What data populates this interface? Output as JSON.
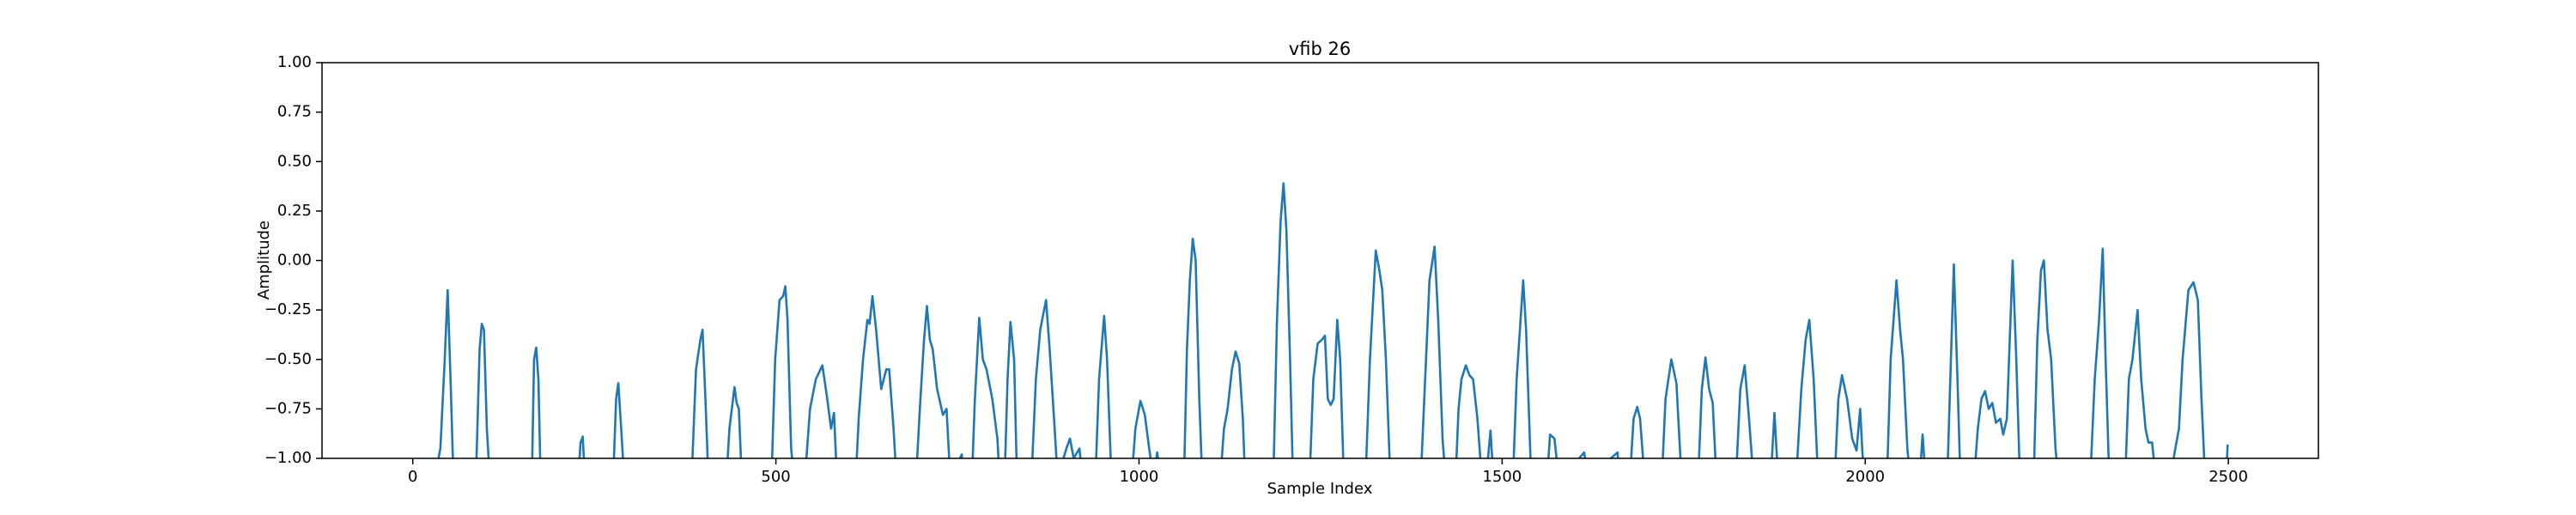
{
  "chart_data": {
    "type": "line",
    "title": "vfib 26",
    "xlabel": "Sample Index",
    "ylabel": "Amplitude",
    "color": "#1f77b4",
    "xlim": [
      -125,
      2624
    ],
    "ylim": [
      -1,
      1
    ],
    "xticks": [
      0,
      500,
      1000,
      1500,
      2000,
      2500
    ],
    "yticks": [
      {
        "value": -1,
        "label": "−1.00"
      },
      {
        "value": -0.75,
        "label": "−0.75"
      },
      {
        "value": -0.5,
        "label": "−0.50"
      },
      {
        "value": -0.25,
        "label": "−0.25"
      },
      {
        "value": 0,
        "label": "0.00"
      },
      {
        "value": 0.25,
        "label": "0.25"
      },
      {
        "value": 0.5,
        "label": "0.50"
      },
      {
        "value": 0.75,
        "label": "0.75"
      },
      {
        "value": 1,
        "label": "1.00"
      }
    ],
    "x": [
      0,
      30,
      38,
      44,
      48,
      52,
      56,
      87,
      92,
      95,
      98,
      102,
      106,
      164,
      167,
      170,
      173,
      176,
      228,
      231,
      234,
      237,
      276,
      280,
      283,
      287,
      291,
      384,
      390,
      396,
      399,
      403,
      407,
      432,
      436,
      443,
      446,
      449,
      453,
      494,
      499,
      505,
      510,
      513,
      516,
      521,
      525,
      540,
      547,
      555,
      564,
      570,
      576,
      580,
      584,
      610,
      614,
      620,
      626,
      629,
      633,
      638,
      645,
      652,
      656,
      662,
      666,
      693,
      699,
      704,
      708,
      712,
      716,
      722,
      730,
      735,
      740,
      756,
      758,
      770,
      774,
      780,
      785,
      790,
      798,
      805,
      808,
      815,
      819,
      823,
      828,
      832,
      852,
      858,
      864,
      872,
      877,
      883,
      888,
      900,
      905,
      910,
      918,
      922,
      940,
      945,
      952,
      956,
      962,
      990,
      995,
      1002,
      1008,
      1014,
      1020,
      1025,
      1030,
      1062,
      1066,
      1070,
      1074,
      1078,
      1083,
      1087,
      1112,
      1117,
      1122,
      1128,
      1133,
      1138,
      1143,
      1146,
      1185,
      1190,
      1195,
      1199,
      1203,
      1208,
      1212,
      1235,
      1240,
      1246,
      1252,
      1256,
      1260,
      1264,
      1268,
      1273,
      1277,
      1282,
      1312,
      1318,
      1326,
      1331,
      1335,
      1340,
      1346,
      1388,
      1394,
      1400,
      1407,
      1412,
      1418,
      1422,
      1436,
      1440,
      1444,
      1450,
      1455,
      1460,
      1466,
      1472,
      1478,
      1484,
      1488,
      1515,
      1520,
      1529,
      1533,
      1540,
      1562,
      1566,
      1572,
      1578,
      1606,
      1613,
      1618,
      1659,
      1661,
      1676,
      1681,
      1686,
      1690,
      1696,
      1720,
      1725,
      1733,
      1740,
      1747,
      1770,
      1775,
      1780,
      1785,
      1790,
      1795,
      1822,
      1828,
      1834,
      1840,
      1846,
      1870,
      1875,
      1880,
      1905,
      1912,
      1918,
      1923,
      1929,
      1935,
      1958,
      1963,
      1968,
      1975,
      1982,
      1988,
      1993,
      1998,
      2030,
      2035,
      2043,
      2048,
      2052,
      2058,
      2062,
      2075,
      2079,
      2083,
      2113,
      2118,
      2122,
      2127,
      2131,
      2150,
      2155,
      2160,
      2165,
      2170,
      2175,
      2180,
      2186,
      2190,
      2195,
      2200,
      2203,
      2208,
      2213,
      2232,
      2237,
      2242,
      2246,
      2251,
      2256,
      2262,
      2266,
      2310,
      2316,
      2322,
      2327,
      2331,
      2336,
      2358,
      2363,
      2368,
      2375,
      2380,
      2386,
      2390,
      2395,
      2400,
      2420,
      2427,
      2432,
      2437,
      2445,
      2452,
      2458,
      2463,
      2468,
      2497,
      2499
    ],
    "values": [
      -1.1,
      -1.1,
      -0.95,
      -0.5,
      -0.15,
      -0.6,
      -1.1,
      -1.1,
      -0.45,
      -0.32,
      -0.35,
      -0.85,
      -1.1,
      -1.1,
      -0.5,
      -0.44,
      -0.6,
      -1.1,
      -1.1,
      -0.92,
      -0.89,
      -1.1,
      -1.1,
      -0.7,
      -0.62,
      -0.85,
      -1.1,
      -1.1,
      -0.55,
      -0.4,
      -0.35,
      -0.7,
      -1.1,
      -1.1,
      -0.85,
      -0.64,
      -0.72,
      -0.75,
      -1.1,
      -1.1,
      -0.5,
      -0.2,
      -0.18,
      -0.13,
      -0.3,
      -0.95,
      -1.1,
      -1.1,
      -0.75,
      -0.6,
      -0.53,
      -0.68,
      -0.85,
      -0.77,
      -1.1,
      -1.1,
      -0.8,
      -0.5,
      -0.3,
      -0.32,
      -0.18,
      -0.35,
      -0.65,
      -0.55,
      -0.55,
      -0.85,
      -1.1,
      -1.1,
      -0.7,
      -0.4,
      -0.23,
      -0.4,
      -0.45,
      -0.65,
      -0.78,
      -0.75,
      -1.1,
      -0.98,
      -1.1,
      -1.1,
      -0.7,
      -0.29,
      -0.5,
      -0.55,
      -0.7,
      -0.9,
      -1.1,
      -1.1,
      -0.6,
      -0.31,
      -0.5,
      -1.1,
      -1.1,
      -0.6,
      -0.35,
      -0.2,
      -0.45,
      -0.8,
      -1.1,
      -0.95,
      -0.9,
      -1.0,
      -0.95,
      -1.1,
      -1.1,
      -0.6,
      -0.28,
      -0.5,
      -1.1,
      -1.1,
      -0.85,
      -0.71,
      -0.78,
      -0.95,
      -1.1,
      -0.97,
      -1.1,
      -1.1,
      -0.45,
      -0.1,
      0.11,
      0.0,
      -0.7,
      -1.1,
      -1.1,
      -0.85,
      -0.75,
      -0.55,
      -0.46,
      -0.52,
      -0.8,
      -1.1,
      -1.1,
      -0.3,
      0.2,
      0.39,
      0.15,
      -0.5,
      -1.1,
      -1.1,
      -0.6,
      -0.42,
      -0.4,
      -0.38,
      -0.7,
      -0.73,
      -0.7,
      -0.3,
      -0.5,
      -1.1,
      -1.1,
      -0.5,
      0.05,
      -0.05,
      -0.15,
      -0.5,
      -1.1,
      -1.1,
      -0.6,
      -0.1,
      0.07,
      -0.3,
      -0.9,
      -1.1,
      -1.1,
      -0.75,
      -0.6,
      -0.53,
      -0.58,
      -0.6,
      -0.8,
      -1.1,
      -1.1,
      -0.86,
      -1.1,
      -1.1,
      -0.6,
      -0.1,
      -0.35,
      -1.1,
      -1.1,
      -0.88,
      -0.9,
      -1.1,
      -1.0,
      -0.97,
      -1.1,
      -0.97,
      -1.1,
      -1.1,
      -0.8,
      -0.74,
      -0.8,
      -1.1,
      -1.1,
      -0.7,
      -0.5,
      -0.62,
      -1.1,
      -1.1,
      -0.65,
      -0.49,
      -0.65,
      -0.72,
      -1.1,
      -1.1,
      -0.65,
      -0.53,
      -0.8,
      -1.1,
      -1.1,
      -0.77,
      -1.1,
      -1.1,
      -0.65,
      -0.4,
      -0.3,
      -0.6,
      -1.1,
      -1.1,
      -0.7,
      -0.58,
      -0.7,
      -0.9,
      -0.96,
      -0.75,
      -1.1,
      -1.1,
      -0.5,
      -0.1,
      -0.35,
      -0.5,
      -0.95,
      -1.1,
      -1.1,
      -0.88,
      -1.1,
      -1.1,
      -0.5,
      -0.02,
      -0.6,
      -1.1,
      -1.1,
      -0.85,
      -0.7,
      -0.66,
      -0.75,
      -0.72,
      -0.82,
      -0.8,
      -0.88,
      -0.8,
      -0.3,
      0.0,
      -0.5,
      -1.1,
      -1.1,
      -0.4,
      -0.05,
      0.0,
      -0.35,
      -0.5,
      -0.95,
      -1.1,
      -1.1,
      -0.6,
      -0.3,
      0.06,
      -0.5,
      -1.1,
      -1.1,
      -0.6,
      -0.5,
      -0.25,
      -0.6,
      -0.85,
      -0.92,
      -0.92,
      -1.1,
      -1.1,
      -0.95,
      -0.85,
      -0.5,
      -0.15,
      -0.11,
      -0.2,
      -0.7,
      -1.1,
      -1.1,
      -0.93
    ]
  }
}
